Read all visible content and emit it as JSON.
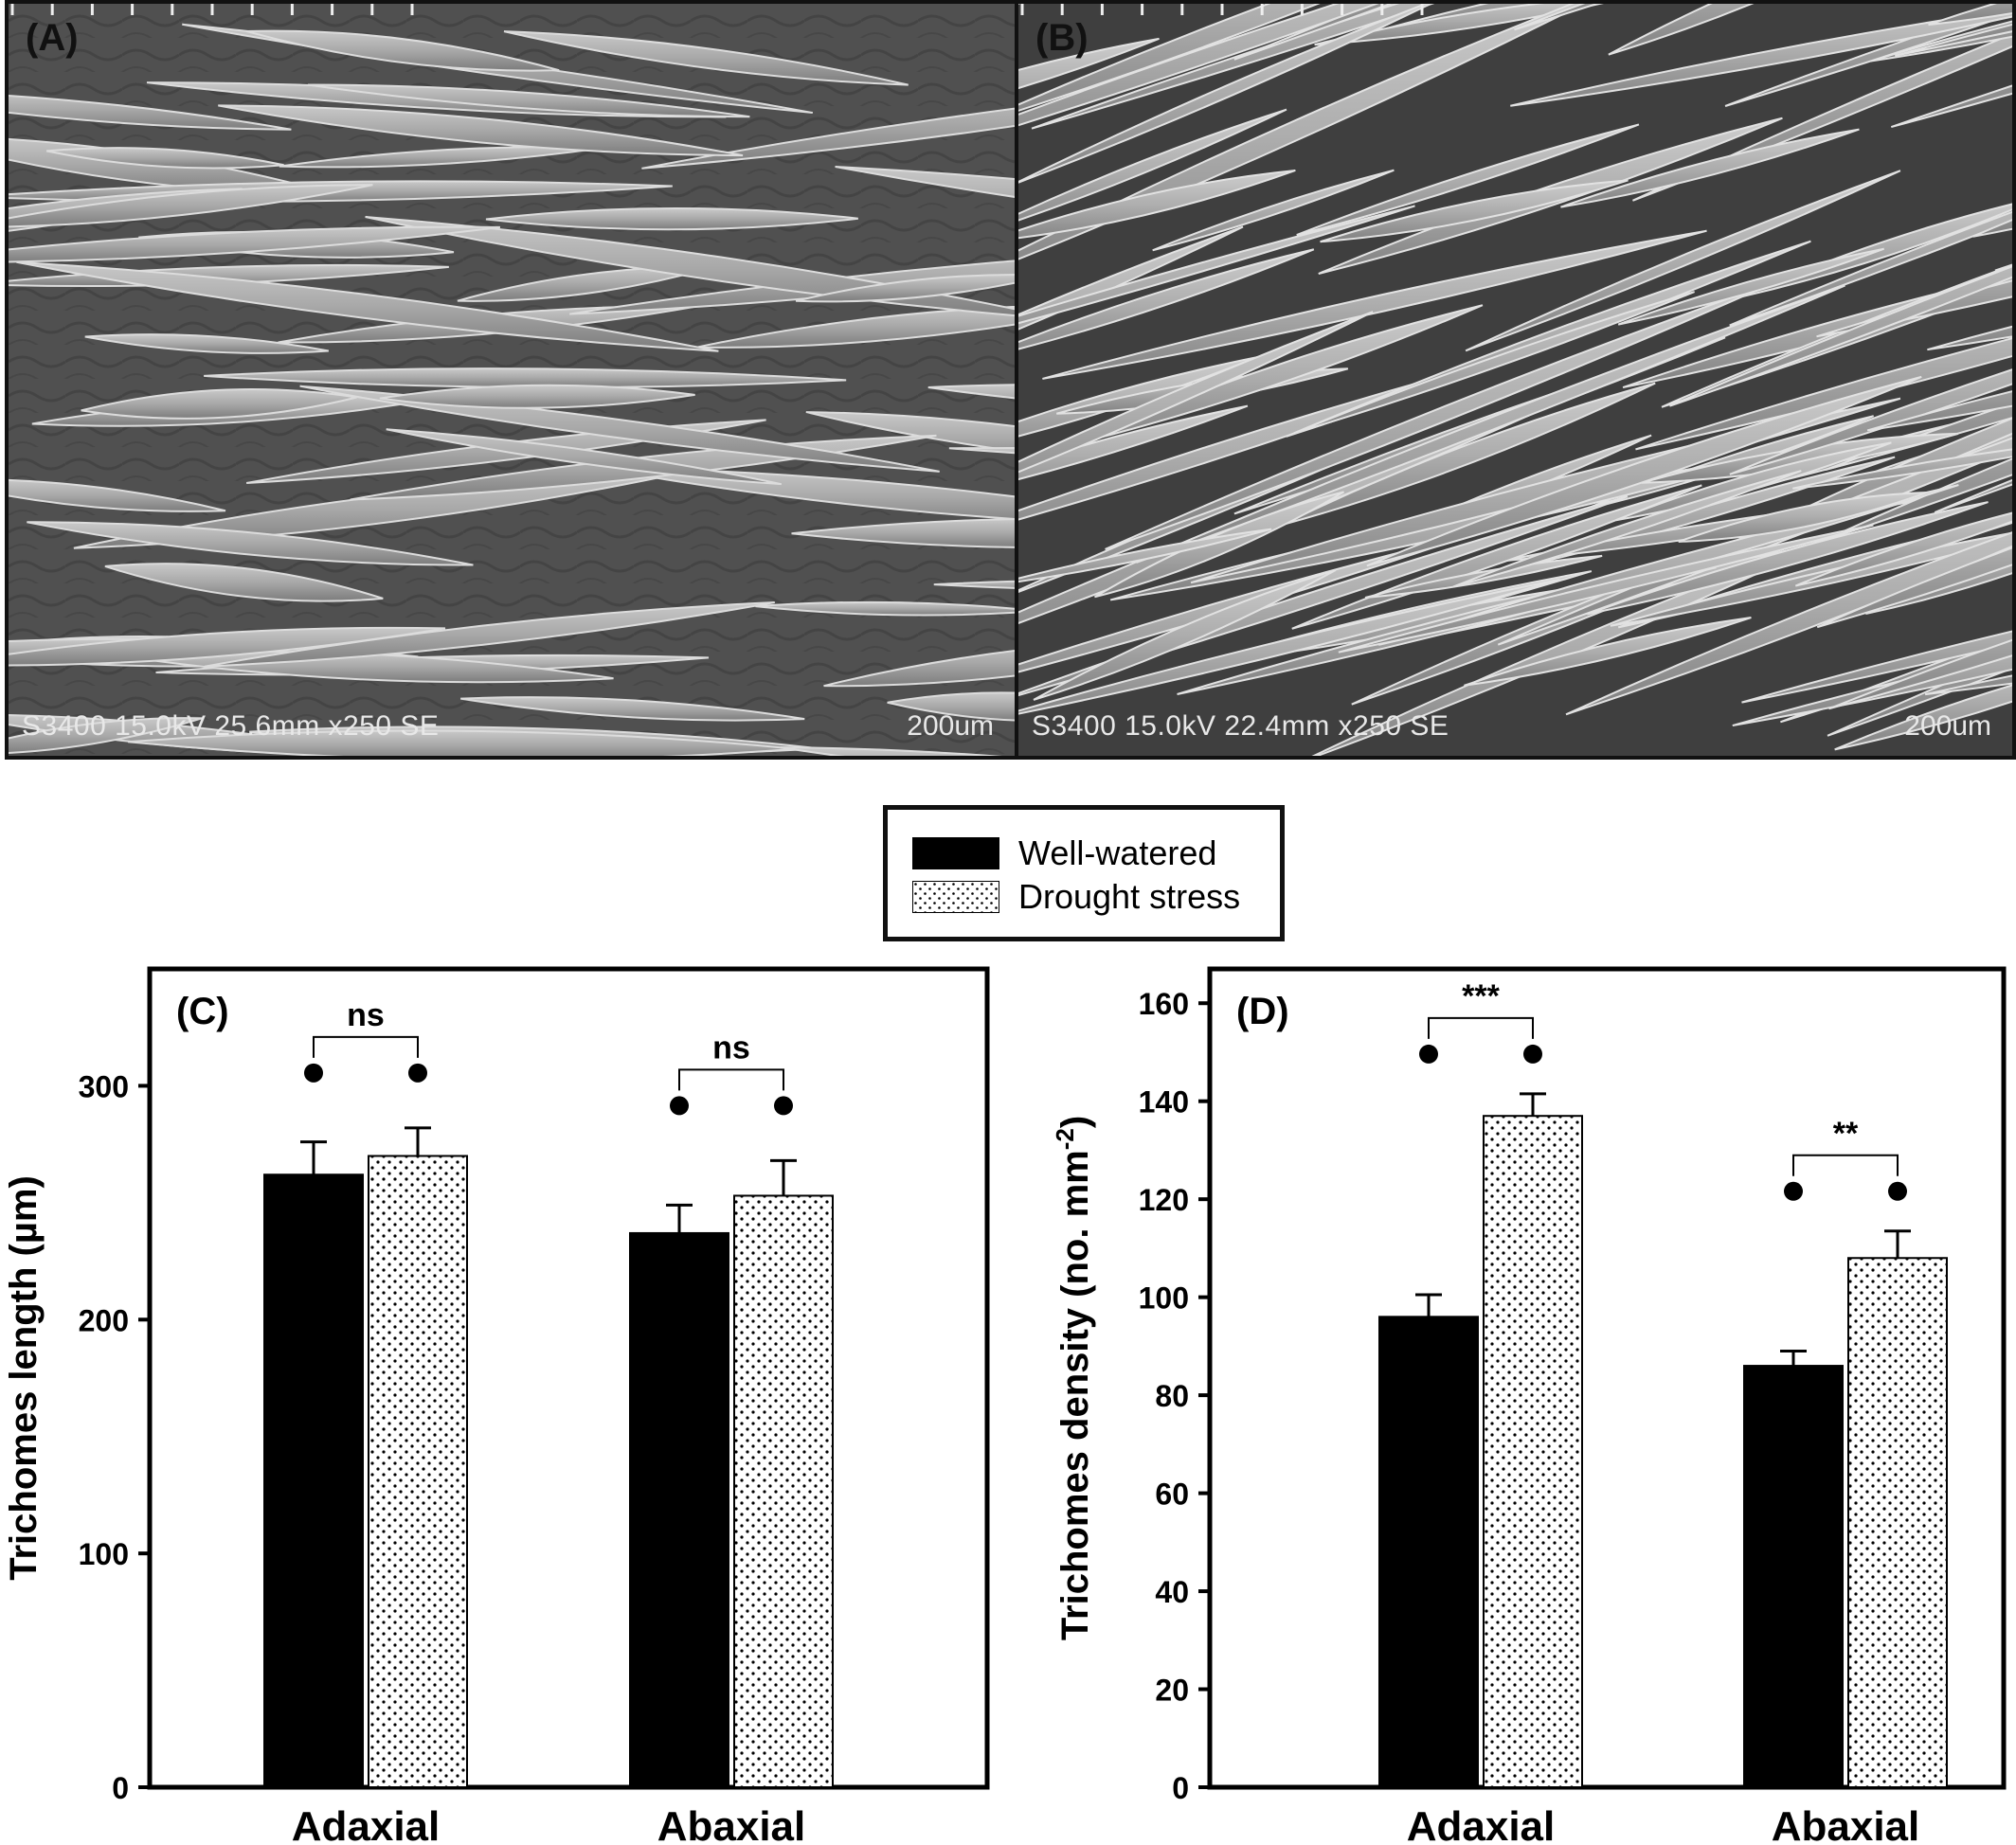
{
  "panels": {
    "a": {
      "letter": "(A)",
      "meta": "S3400 15.0kV 25.6mm x250 SE",
      "scale": "200um"
    },
    "b": {
      "letter": "(B)",
      "meta": "S3400 15.0kV 22.4mm x250 SE",
      "scale": "200um"
    }
  },
  "legend": {
    "well_watered": "Well-watered",
    "drought_stress": "Drought stress"
  },
  "colors": {
    "well_watered": "#000000",
    "drought_stress": "dotted white",
    "marker": "#000000"
  },
  "chart_data": [
    {
      "type": "bar",
      "panel_label": "(C)",
      "categories": [
        "Adaxial",
        "Abaxial"
      ],
      "series": [
        {
          "name": "Well-watered",
          "values": [
            262,
            237
          ],
          "errors": [
            14,
            12
          ]
        },
        {
          "name": "Drought stress",
          "values": [
            270,
            253
          ],
          "errors": [
            12,
            15
          ]
        }
      ],
      "ylabel": "Trichomes length (µm)",
      "ylim": [
        0,
        350
      ],
      "yticks": [
        0,
        100,
        200,
        300
      ],
      "significance": [
        "ns",
        "ns"
      ],
      "grid": false
    },
    {
      "type": "bar",
      "panel_label": "(D)",
      "categories": [
        "Adaxial",
        "Abaxial"
      ],
      "series": [
        {
          "name": "Well-watered",
          "values": [
            96,
            86
          ],
          "errors": [
            4.5,
            3
          ]
        },
        {
          "name": "Drought stress",
          "values": [
            137,
            108
          ],
          "errors": [
            4.5,
            5.5
          ]
        }
      ],
      "ylabel": "Trichomes density (no. mm",
      "ylabel_superscript": "-2",
      "ylabel_suffix": ")",
      "ylim": [
        0,
        167
      ],
      "yticks": [
        0,
        20,
        40,
        60,
        80,
        100,
        120,
        140,
        160
      ],
      "significance": [
        "***",
        "**"
      ],
      "grid": false
    }
  ]
}
